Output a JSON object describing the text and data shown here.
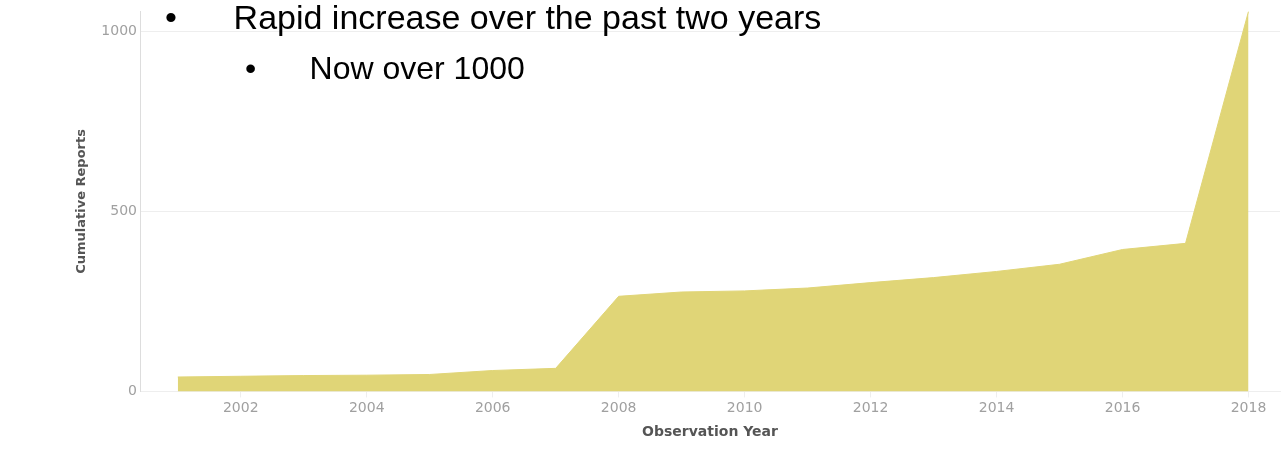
{
  "chart_data": {
    "type": "area",
    "xlabel": "Observation Year",
    "ylabel": "Cumulative Reports",
    "x": [
      2001,
      2002,
      2003,
      2004,
      2005,
      2006,
      2007,
      2008,
      2009,
      2010,
      2011,
      2012,
      2013,
      2014,
      2015,
      2016,
      2017,
      2018
    ],
    "series": [
      {
        "color": "#e0d577",
        "values": [
          40,
          42,
          44,
          45,
          47,
          58,
          64,
          264,
          276,
          279,
          287,
          302,
          316,
          333,
          353,
          394,
          411,
          1055
        ]
      }
    ],
    "xlim": [
      2000.4,
      2018.5
    ],
    "xticks": [
      2002,
      2004,
      2006,
      2008,
      2010,
      2012,
      2014,
      2016,
      2018
    ],
    "ylim": [
      0,
      1055
    ],
    "yticks": [
      0,
      500,
      1000
    ],
    "grid": "y",
    "legend": false,
    "annotations": [
      "•      Rapid increase over the past two years",
      "•      Now over 1000"
    ]
  }
}
